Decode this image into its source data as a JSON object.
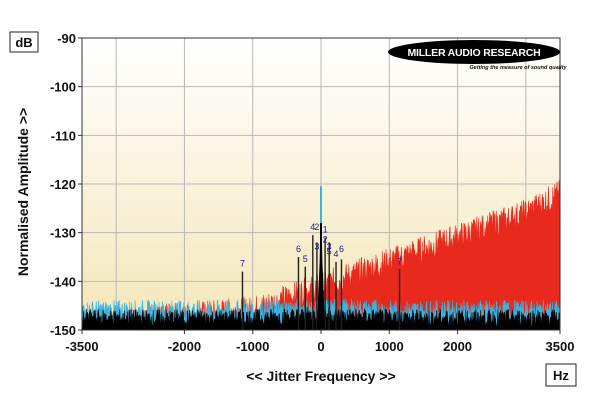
{
  "chart_data": {
    "type": "area",
    "xlabel": "<< Jitter Frequency >>",
    "ylabel": "Normalised Amplitude >>",
    "x_unit": "Hz",
    "y_unit": "dB",
    "xlim": [
      -3500,
      3500
    ],
    "ylim": [
      -150,
      -90
    ],
    "x_ticks": [
      -3500,
      -2000,
      -1000,
      0,
      1000,
      2000,
      3500
    ],
    "y_ticks": [
      -90,
      -100,
      -110,
      -120,
      -130,
      -140,
      -150
    ],
    "grid": true,
    "series": [
      {
        "color": "#e8291c",
        "x": [
          -3500,
          -1000,
          -500,
          0,
          500,
          1000,
          2000,
          3000,
          3500
        ],
        "y": [
          -149,
          -146,
          -143.5,
          -141,
          -138.5,
          -136,
          -131,
          -126,
          -122
        ]
      },
      {
        "color": "#3bb4e0",
        "x": [
          -3500,
          -1000,
          0,
          1000,
          3500
        ],
        "y": [
          -146,
          -146,
          -145.5,
          -146,
          -146
        ]
      },
      {
        "color": "#000000",
        "x": [
          -3500,
          -1000,
          0,
          1000,
          3500
        ],
        "y": [
          -147.5,
          -147.5,
          -147,
          -147.5,
          -147.5
        ]
      }
    ],
    "peaks": [
      {
        "x": 0,
        "y": -120.5
      },
      {
        "x": -1150,
        "y": -138
      },
      {
        "x": 1150,
        "y": -137.5
      },
      {
        "x": -330,
        "y": -135
      },
      {
        "x": -230,
        "y": -137
      },
      {
        "x": -120,
        "y": -130.5
      },
      {
        "x": -60,
        "y": -132
      },
      {
        "x": 60,
        "y": -131
      },
      {
        "x": 120,
        "y": -132
      },
      {
        "x": 220,
        "y": -136
      },
      {
        "x": 300,
        "y": -135.5
      }
    ],
    "annotations": [
      {
        "text": "7",
        "x": -1150,
        "y": -137
      },
      {
        "text": "7",
        "x": 1150,
        "y": -136.5
      },
      {
        "text": "6",
        "x": -330,
        "y": -134
      },
      {
        "text": "5",
        "x": -230,
        "y": -136
      },
      {
        "text": "4",
        "x": -120,
        "y": -129.5
      },
      {
        "text": "2",
        "x": -60,
        "y": -129.5
      },
      {
        "text": "3",
        "x": -60,
        "y": -133.5
      },
      {
        "text": "1",
        "x": 60,
        "y": -130
      },
      {
        "text": "2",
        "x": 60,
        "y": -132
      },
      {
        "text": "3",
        "x": 120,
        "y": -133.5
      },
      {
        "text": "5",
        "x": 120,
        "y": -134.5
      },
      {
        "text": "4",
        "x": 220,
        "y": -135
      },
      {
        "text": "6",
        "x": 300,
        "y": -134
      }
    ]
  },
  "logo": {
    "name": "MILLER AUDIO RESEARCH",
    "tagline": "Getting the measure of sound quality"
  },
  "colors": {
    "plot_background_top": "#ffffff",
    "plot_background_bottom": "#f3e6b8",
    "grid": "#b8b8b8",
    "red_area": "#e8291c",
    "blue_floor": "#3bb4e0",
    "black_floor": "#000000",
    "annotation": "#1a1a8c"
  }
}
